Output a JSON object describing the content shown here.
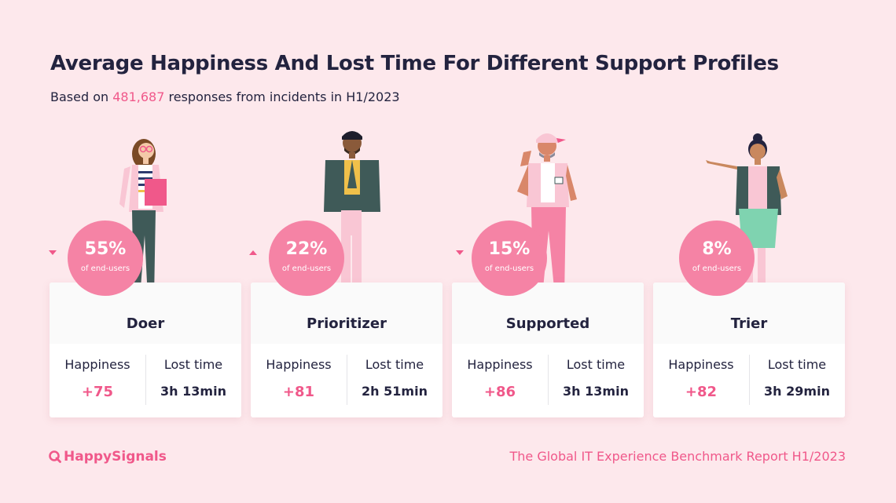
{
  "title": "Average Happiness And Lost Time For Different Support Profiles",
  "subtitle": {
    "prefix": "Based on",
    "highlight": "481,687",
    "suffix": "responses from incidents in H1/2023"
  },
  "labels": {
    "happiness": "Happiness",
    "lost_time": "Lost time"
  },
  "profiles": [
    {
      "name": "Doer",
      "percent": "55%",
      "share_label": "of end-users",
      "happiness": "+75",
      "lost_time": "3h 13min",
      "trend": "down"
    },
    {
      "name": "Prioritizer",
      "percent": "22%",
      "share_label": "of end-users",
      "happiness": "+81",
      "lost_time": "2h 51min",
      "trend": "up"
    },
    {
      "name": "Supported",
      "percent": "15%",
      "share_label": "of end-users",
      "happiness": "+86",
      "lost_time": "3h 13min",
      "trend": "down"
    },
    {
      "name": "Trier",
      "percent": "8%",
      "share_label": "of end-users",
      "happiness": "+82",
      "lost_time": "3h 29min",
      "trend": "none"
    }
  ],
  "footer": {
    "logo_text": "HappySignals",
    "report": "The Global IT Experience Benchmark Report H1/2023"
  },
  "colors": {
    "background": "#fde8ec",
    "accent": "#f0588a",
    "badge": "#f583a5",
    "text": "#23233f"
  }
}
